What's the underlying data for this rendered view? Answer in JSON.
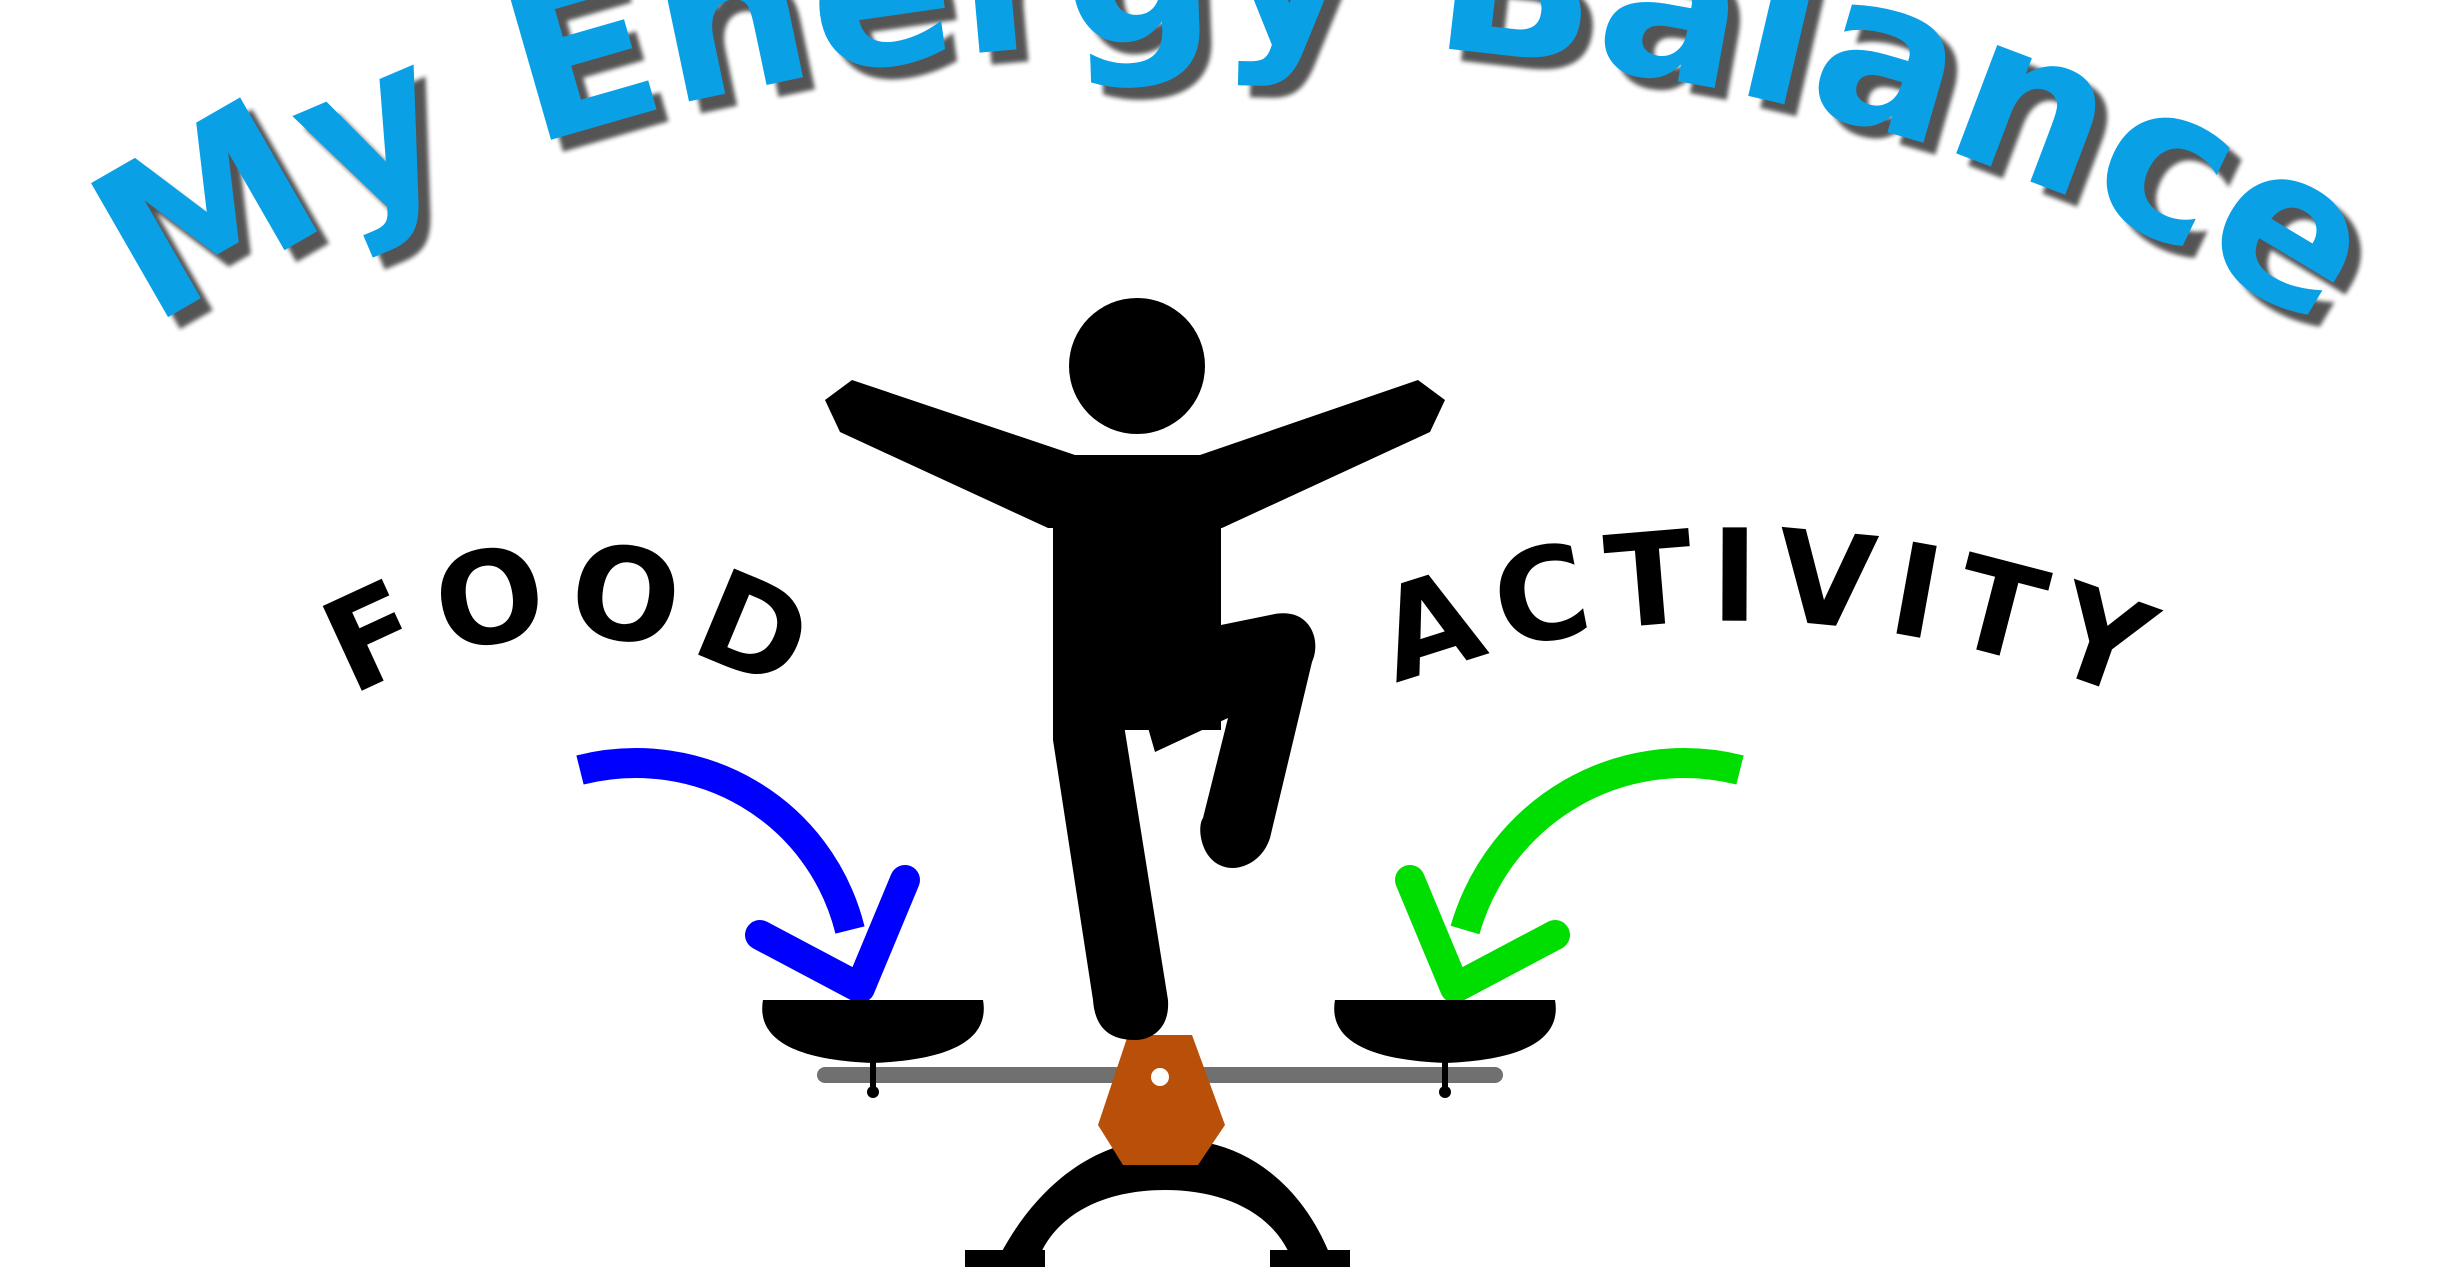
{
  "title": "My Energy Balance",
  "left_label": "FOOD",
  "right_label": "ACTIVITY",
  "colors": {
    "title": "#0aa0e6",
    "title_shadow": "#1a1a1a",
    "figure": "#000000",
    "food_arrow": "#0000ff",
    "activity_arrow": "#00dd00",
    "pivot": "#b8500a",
    "beam": "#707070"
  }
}
